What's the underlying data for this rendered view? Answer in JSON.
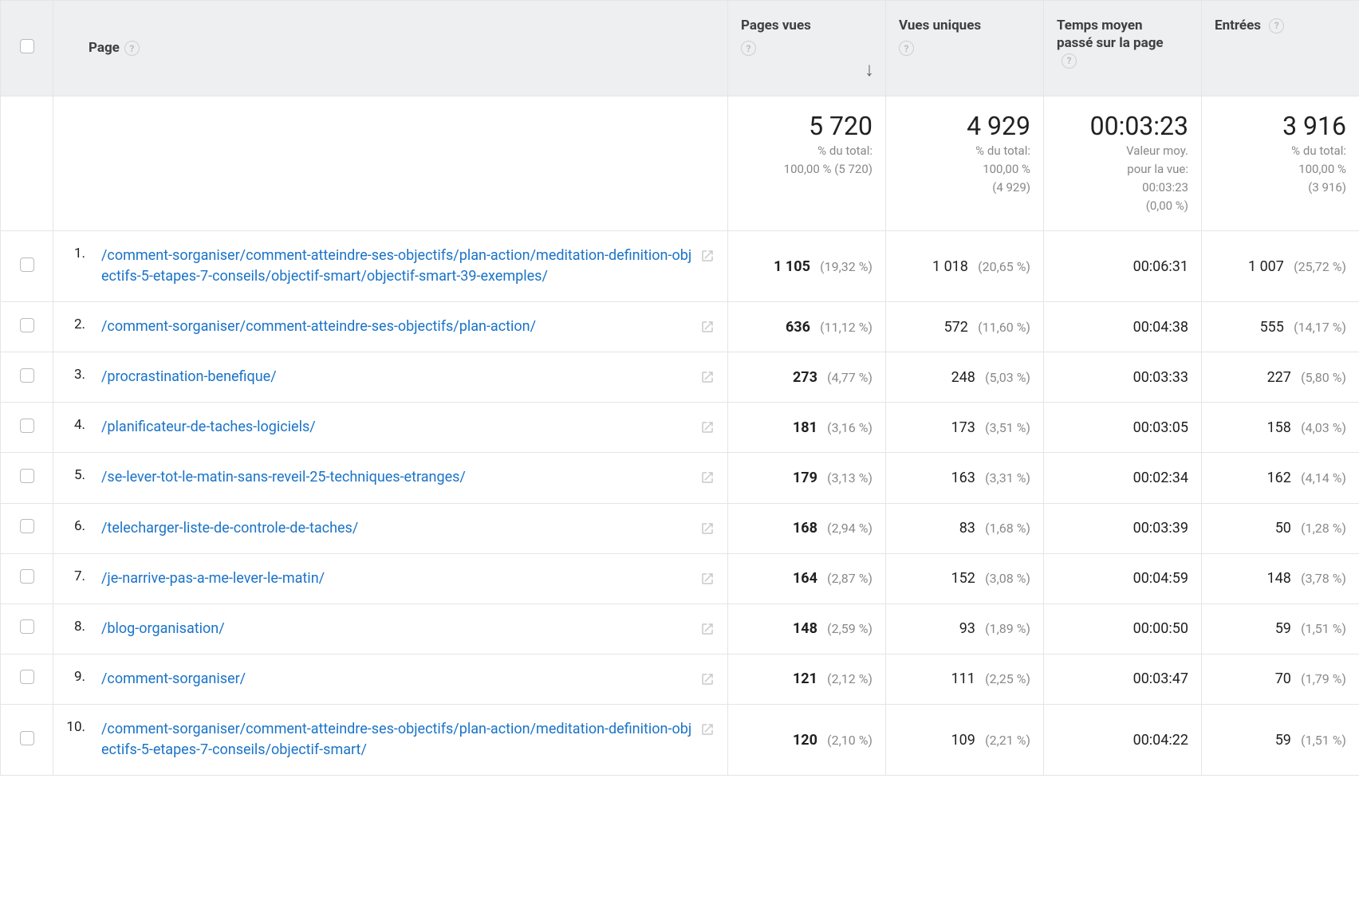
{
  "colors": {
    "header_bg": "#edeff0",
    "border": "#e5e5e5",
    "link": "#1a73c8",
    "muted": "#8a8a8a",
    "text": "#212121"
  },
  "headers": {
    "page": "Page",
    "pageviews": "Pages vues",
    "unique": "Vues uniques",
    "avg_time": "Temps moyen passé sur la page",
    "entries": "Entrées"
  },
  "summary": {
    "pageviews": {
      "value": "5 720",
      "sub1": "% du total:",
      "sub2": "100,00 % (5 720)"
    },
    "unique": {
      "value": "4 929",
      "sub1": "% du total:",
      "sub2": "100,00 %",
      "sub3": "(4 929)"
    },
    "avg_time": {
      "value": "00:03:23",
      "sub1": "Valeur moy.",
      "sub2": "pour la vue:",
      "sub3": "00:03:23",
      "sub4": "(0,00 %)"
    },
    "entries": {
      "value": "3 916",
      "sub1": "% du total:",
      "sub2": "100,00 %",
      "sub3": "(3 916)"
    }
  },
  "rows": [
    {
      "i": "1.",
      "url": "/comment-sorganiser/comment-atteindre-ses-objectifs/plan-action/meditation-definition-objectifs-5-etapes-7-conseils/objectif-smart/objectif-smart-39-exemples/",
      "pv": "1 105",
      "pv_pct": "(19,32 %)",
      "uv": "1 018",
      "uv_pct": "(20,65 %)",
      "time": "00:06:31",
      "en": "1 007",
      "en_pct": "(25,72 %)"
    },
    {
      "i": "2.",
      "url": "/comment-sorganiser/comment-atteindre-ses-objectifs/plan-action/",
      "pv": "636",
      "pv_pct": "(11,12 %)",
      "uv": "572",
      "uv_pct": "(11,60 %)",
      "time": "00:04:38",
      "en": "555",
      "en_pct": "(14,17 %)"
    },
    {
      "i": "3.",
      "url": "/procrastination-benefique/",
      "pv": "273",
      "pv_pct": "(4,77 %)",
      "uv": "248",
      "uv_pct": "(5,03 %)",
      "time": "00:03:33",
      "en": "227",
      "en_pct": "(5,80 %)"
    },
    {
      "i": "4.",
      "url": "/planificateur-de-taches-logiciels/",
      "pv": "181",
      "pv_pct": "(3,16 %)",
      "uv": "173",
      "uv_pct": "(3,51 %)",
      "time": "00:03:05",
      "en": "158",
      "en_pct": "(4,03 %)"
    },
    {
      "i": "5.",
      "url": "/se-lever-tot-le-matin-sans-reveil-25-techniques-etranges/",
      "pv": "179",
      "pv_pct": "(3,13 %)",
      "uv": "163",
      "uv_pct": "(3,31 %)",
      "time": "00:02:34",
      "en": "162",
      "en_pct": "(4,14 %)"
    },
    {
      "i": "6.",
      "url": "/telecharger-liste-de-controle-de-taches/",
      "pv": "168",
      "pv_pct": "(2,94 %)",
      "uv": "83",
      "uv_pct": "(1,68 %)",
      "time": "00:03:39",
      "en": "50",
      "en_pct": "(1,28 %)"
    },
    {
      "i": "7.",
      "url": "/je-narrive-pas-a-me-lever-le-matin/",
      "pv": "164",
      "pv_pct": "(2,87 %)",
      "uv": "152",
      "uv_pct": "(3,08 %)",
      "time": "00:04:59",
      "en": "148",
      "en_pct": "(3,78 %)"
    },
    {
      "i": "8.",
      "url": "/blog-organisation/",
      "pv": "148",
      "pv_pct": "(2,59 %)",
      "uv": "93",
      "uv_pct": "(1,89 %)",
      "time": "00:00:50",
      "en": "59",
      "en_pct": "(1,51 %)"
    },
    {
      "i": "9.",
      "url": "/comment-sorganiser/",
      "pv": "121",
      "pv_pct": "(2,12 %)",
      "uv": "111",
      "uv_pct": "(2,25 %)",
      "time": "00:03:47",
      "en": "70",
      "en_pct": "(1,79 %)"
    },
    {
      "i": "10.",
      "url": "/comment-sorganiser/comment-atteindre-ses-objectifs/plan-action/meditation-definition-objectifs-5-etapes-7-conseils/objectif-smart/",
      "pv": "120",
      "pv_pct": "(2,10 %)",
      "uv": "109",
      "uv_pct": "(2,21 %)",
      "time": "00:04:22",
      "en": "59",
      "en_pct": "(1,51 %)"
    }
  ]
}
